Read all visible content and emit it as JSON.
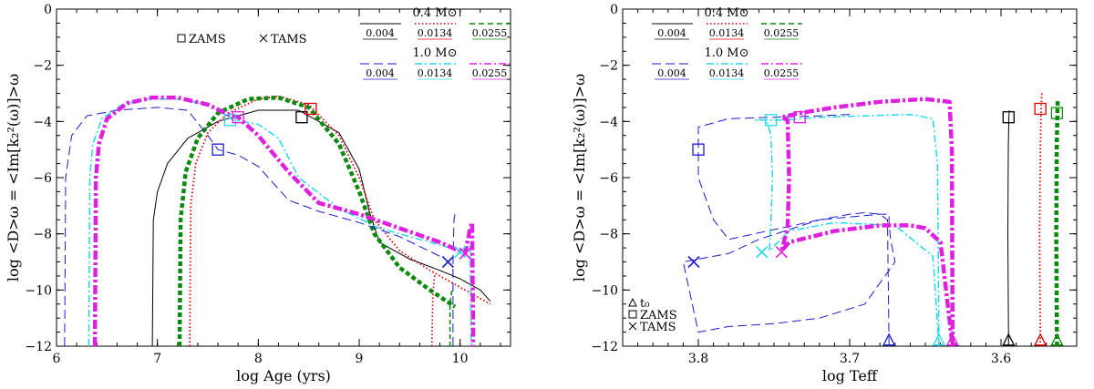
{
  "colors": {
    "black": "#000000",
    "red": "#e00000",
    "green": "#0a8a0a",
    "blue": "#1a1acc",
    "cyan": "#22d8e8",
    "magenta": "#e020e0"
  },
  "chart_data": [
    {
      "type": "line",
      "title": "",
      "xlabel": "log Age (yrs)",
      "ylabel": "log <D>ω = <Im[k₂²(ω)]>ω",
      "xlim": [
        6,
        10.5
      ],
      "ylim": [
        -12,
        0
      ],
      "xticks": [
        "6",
        "7",
        "8",
        "9",
        "10"
      ],
      "yticks": [
        "0",
        "−2",
        "−4",
        "−6",
        "−8",
        "−10",
        "−12"
      ],
      "marker_legend": [
        {
          "symbol": "square",
          "label": "ZAMS"
        },
        {
          "symbol": "cross",
          "label": "TAMS"
        }
      ],
      "mass_legend": [
        {
          "mass": "0.4 M⊙",
          "entries": [
            {
              "label": "0.004",
              "color": "black",
              "dash": "solid"
            },
            {
              "label": "0.0134",
              "color": "red",
              "dash": "dotted"
            },
            {
              "label": "0.0255",
              "color": "green",
              "dash": "dashed"
            }
          ]
        },
        {
          "mass": "1.0 M⊙",
          "entries": [
            {
              "label": "0.004",
              "color": "blue",
              "dash": "longdash"
            },
            {
              "label": "0.0134",
              "color": "cyan",
              "dash": "dashdot"
            },
            {
              "label": "0.0255",
              "color": "magenta",
              "dash": "dashdot-thick"
            }
          ]
        }
      ],
      "series": [
        {
          "name": "0.4 Msun Z=0.004",
          "color": "black",
          "dash": "solid",
          "x": [
            6.95,
            6.96,
            7.0,
            7.1,
            7.3,
            7.6,
            8.0,
            8.4,
            8.8,
            9.0,
            9.1,
            9.2,
            9.5,
            9.8,
            10.0,
            10.2,
            10.3
          ],
          "y": [
            -12,
            -7.5,
            -6.5,
            -5.5,
            -4.6,
            -4.0,
            -3.6,
            -3.6,
            -4.4,
            -5.7,
            -7.2,
            -8.3,
            -8.9,
            -9.3,
            -9.6,
            -10.0,
            -10.4
          ],
          "markers": [
            {
              "type": "square",
              "x": 8.43,
              "y": -3.85
            }
          ]
        },
        {
          "name": "0.4 Msun Z=0.0134",
          "color": "red",
          "dash": "dotted",
          "x": [
            7.32,
            7.33,
            7.38,
            7.5,
            7.7,
            8.0,
            8.2,
            8.5,
            8.8,
            9.0,
            9.15,
            9.4,
            9.7,
            10.0,
            10.3
          ],
          "y": [
            -12,
            -7.0,
            -5.5,
            -4.4,
            -3.7,
            -3.2,
            -3.1,
            -3.4,
            -4.5,
            -6.0,
            -7.5,
            -8.6,
            -9.3,
            -9.9,
            -10.5
          ],
          "markers": [
            {
              "type": "square",
              "x": 8.52,
              "y": -3.55
            }
          ],
          "branch_x": [
            9.72,
            9.73,
            9.75
          ],
          "branch_y": [
            -12,
            -10.2,
            -9.4
          ]
        },
        {
          "name": "0.4 Msun Z=0.0255",
          "color": "green",
          "dash": "dashed",
          "x": [
            7.22,
            7.23,
            7.28,
            7.4,
            7.6,
            7.9,
            8.2,
            8.5,
            8.8,
            9.0,
            9.15,
            9.4,
            9.7,
            9.95
          ],
          "y": [
            -12,
            -7.5,
            -5.8,
            -4.6,
            -3.7,
            -3.2,
            -3.15,
            -3.5,
            -4.8,
            -6.5,
            -8.0,
            -9.2,
            -10.0,
            -10.6
          ],
          "markers": [],
          "branch_x": [
            9.9,
            9.9,
            9.92
          ],
          "branch_y": [
            -12,
            -10.5,
            -10.0
          ]
        },
        {
          "name": "1.0 Msun Z=0.004",
          "color": "blue",
          "dash": "longdash",
          "x": [
            6.08,
            6.09,
            6.15,
            6.3,
            6.6,
            7.0,
            7.3,
            7.5,
            7.6,
            7.8,
            8.0,
            8.3,
            8.6,
            9.0,
            9.4,
            9.8
          ],
          "y": [
            -12,
            -6.0,
            -4.5,
            -3.8,
            -3.6,
            -3.5,
            -3.6,
            -4.5,
            -5.0,
            -5.2,
            -5.6,
            -6.8,
            -7.2,
            -7.6,
            -8.1,
            -8.8
          ],
          "markers": [
            {
              "type": "square",
              "x": 7.6,
              "y": -5.0
            },
            {
              "type": "cross",
              "x": 9.88,
              "y": -9.0
            }
          ],
          "branch_x": [
            9.93,
            9.93,
            9.94,
            9.95
          ],
          "branch_y": [
            -12,
            -9.0,
            -7.5,
            -7.3
          ]
        },
        {
          "name": "1.0 Msun Z=0.0134",
          "color": "cyan",
          "dash": "dashdot",
          "x": [
            6.32,
            6.33,
            6.36,
            6.45,
            6.65,
            6.9,
            7.2,
            7.5,
            7.75,
            8.0,
            8.2,
            8.4,
            8.8,
            9.2,
            9.6,
            10.0,
            10.1,
            10.11
          ],
          "y": [
            -12,
            -6.0,
            -4.8,
            -3.9,
            -3.4,
            -3.2,
            -3.2,
            -3.4,
            -3.95,
            -4.1,
            -4.6,
            -6.0,
            -7.1,
            -7.8,
            -8.2,
            -8.6,
            -8.4,
            -12
          ],
          "markers": [
            {
              "type": "square",
              "x": 7.72,
              "y": -3.95
            },
            {
              "type": "cross",
              "x": 10.0,
              "y": -8.65
            }
          ]
        },
        {
          "name": "1.0 Msun Z=0.0255",
          "color": "magenta",
          "dash": "dashdot",
          "x": [
            6.38,
            6.39,
            6.42,
            6.5,
            6.7,
            6.95,
            7.2,
            7.5,
            7.7,
            7.8,
            8.0,
            8.3,
            8.6,
            9.0,
            9.4,
            9.8,
            10.05,
            10.1,
            10.12,
            10.13
          ],
          "y": [
            -12,
            -6.0,
            -4.8,
            -3.9,
            -3.35,
            -3.15,
            -3.15,
            -3.4,
            -3.75,
            -3.85,
            -4.5,
            -5.8,
            -6.9,
            -7.3,
            -7.8,
            -8.3,
            -8.7,
            -7.8,
            -7.6,
            -12
          ],
          "markers": [
            {
              "type": "square",
              "x": 7.8,
              "y": -3.85
            },
            {
              "type": "cross",
              "x": 10.05,
              "y": -8.7
            }
          ]
        }
      ]
    },
    {
      "type": "line",
      "title": "",
      "xlabel": "log Teff",
      "ylabel": "log <D>ω = <Im[k₂²(ω)]>ω",
      "xlim": [
        3.85,
        3.55
      ],
      "ylim": [
        -12,
        0
      ],
      "xticks": [
        "3.8",
        "3.7",
        "3.6"
      ],
      "yticks": [
        "0",
        "−2",
        "−4",
        "−6",
        "−8",
        "−10",
        "−12"
      ],
      "marker_legend": [
        {
          "symbol": "triangle",
          "label": "t₀"
        },
        {
          "symbol": "square",
          "label": "ZAMS"
        },
        {
          "symbol": "cross",
          "label": "TAMS"
        }
      ],
      "mass_legend": [
        {
          "mass": "0.4 M⊙",
          "entries": [
            {
              "label": "0.004",
              "color": "black",
              "dash": "solid"
            },
            {
              "label": "0.0134",
              "color": "red",
              "dash": "dotted"
            },
            {
              "label": "0.0255",
              "color": "green",
              "dash": "dashed"
            }
          ]
        },
        {
          "mass": "1.0 M⊙",
          "entries": [
            {
              "label": "0.004",
              "color": "blue",
              "dash": "longdash"
            },
            {
              "label": "0.0134",
              "color": "cyan",
              "dash": "dashdot"
            },
            {
              "label": "0.0255",
              "color": "magenta",
              "dash": "dashdot-thick"
            }
          ]
        }
      ],
      "series": [
        {
          "name": "0.4 Msun Z=0.004",
          "color": "black",
          "dash": "solid",
          "x": [
            3.595,
            3.5955,
            3.5952,
            3.5948,
            3.5945
          ],
          "y": [
            -12,
            -8.0,
            -5.0,
            -3.85,
            -3.6
          ],
          "markers": [
            {
              "type": "triangle",
              "x": 3.595,
              "y": -11.8
            },
            {
              "type": "square",
              "x": 3.595,
              "y": -3.85
            }
          ]
        },
        {
          "name": "0.4 Msun Z=0.0134",
          "color": "red",
          "dash": "dotted",
          "x": [
            3.574,
            3.5745,
            3.574,
            3.5735,
            3.573
          ],
          "y": [
            -12,
            -8.0,
            -5.0,
            -3.55,
            -3.0
          ],
          "markers": [
            {
              "type": "triangle",
              "x": 3.574,
              "y": -11.8
            },
            {
              "type": "square",
              "x": 3.574,
              "y": -3.55
            }
          ]
        },
        {
          "name": "0.4 Msun Z=0.0255",
          "color": "green",
          "dash": "dashed",
          "x": [
            3.563,
            3.5635,
            3.5632,
            3.5628,
            3.5625
          ],
          "y": [
            -12,
            -8.0,
            -5.0,
            -3.7,
            -3.2
          ],
          "markers": [
            {
              "type": "triangle",
              "x": 3.563,
              "y": -11.8
            },
            {
              "type": "square",
              "x": 3.563,
              "y": -3.7
            }
          ]
        },
        {
          "name": "1.0 Msun Z=0.004",
          "color": "blue",
          "dash": "longdash",
          "x": [
            3.7,
            3.72,
            3.75,
            3.78,
            3.8,
            3.8,
            3.8,
            3.79,
            3.78,
            3.72,
            3.68,
            3.674,
            3.674,
            3.673,
            3.67,
            3.69,
            3.72,
            3.75,
            3.78,
            3.8,
            3.81,
            3.8,
            3.78,
            3.76,
            3.72,
            3.7,
            3.69,
            3.68,
            3.675,
            3.674
          ],
          "y": [
            -3.75,
            -3.8,
            -3.85,
            -3.9,
            -4.2,
            -5.0,
            -6.0,
            -7.5,
            -8.2,
            -7.5,
            -7.3,
            -7.3,
            -7.6,
            -8.2,
            -9.0,
            -10.5,
            -11.0,
            -11.2,
            -11.3,
            -11.5,
            -9.0,
            -8.9,
            -8.7,
            -8.2,
            -7.5,
            -7.3,
            -7.25,
            -7.3,
            -7.5,
            -12
          ],
          "markers": [
            {
              "type": "square",
              "x": 3.8,
              "y": -5.0
            },
            {
              "type": "cross",
              "x": 3.803,
              "y": -9.0
            },
            {
              "type": "triangle",
              "x": 3.674,
              "y": -11.8
            }
          ]
        },
        {
          "name": "1.0 Msun Z=0.0134",
          "color": "cyan",
          "dash": "dashdot",
          "x": [
            3.641,
            3.6415,
            3.642,
            3.645,
            3.66,
            3.69,
            3.72,
            3.745,
            3.76,
            3.762,
            3.755,
            3.752,
            3.751,
            3.752,
            3.753,
            3.74,
            3.71,
            3.67,
            3.645,
            3.641
          ],
          "y": [
            -12,
            -8.5,
            -5.5,
            -3.9,
            -3.75,
            -3.8,
            -3.85,
            -3.95,
            -3.95,
            -3.95,
            -3.95,
            -4.5,
            -6.0,
            -7.5,
            -8.6,
            -7.9,
            -7.6,
            -7.7,
            -8.8,
            -12
          ],
          "markers": [
            {
              "type": "square",
              "x": 3.752,
              "y": -3.95
            },
            {
              "type": "cross",
              "x": 3.758,
              "y": -8.65
            },
            {
              "type": "triangle",
              "x": 3.641,
              "y": -11.8
            }
          ]
        },
        {
          "name": "1.0 Msun Z=0.0255",
          "color": "magenta",
          "dash": "dashdot",
          "x": [
            3.632,
            3.6322,
            3.6325,
            3.634,
            3.65,
            3.68,
            3.71,
            3.733,
            3.745,
            3.741,
            3.74,
            3.741,
            3.745,
            3.74,
            3.71,
            3.68,
            3.66,
            3.65,
            3.64,
            3.632
          ],
          "y": [
            -12,
            -8.5,
            -5.0,
            -3.3,
            -3.2,
            -3.3,
            -3.5,
            -3.7,
            -3.85,
            -3.95,
            -6.0,
            -7.8,
            -8.6,
            -8.3,
            -7.9,
            -7.7,
            -7.7,
            -7.8,
            -8.3,
            -12
          ],
          "markers": [
            {
              "type": "square",
              "x": 3.733,
              "y": -3.85
            },
            {
              "type": "cross",
              "x": 3.745,
              "y": -8.65
            },
            {
              "type": "triangle",
              "x": 3.632,
              "y": -11.8
            }
          ]
        }
      ]
    }
  ]
}
